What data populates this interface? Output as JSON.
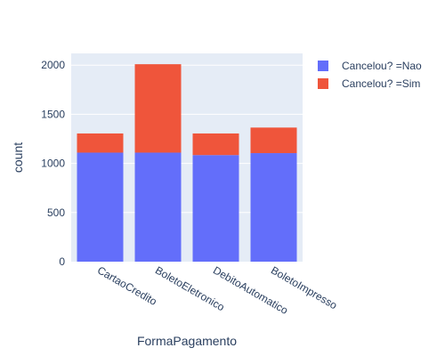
{
  "chart_data": {
    "type": "bar",
    "stacked": true,
    "categories": [
      "CartaoCredito",
      "BoletoEletronico",
      "DebitoAutomatico",
      "BoletoImpresso"
    ],
    "series": [
      {
        "name": "Cancelou? =Nao",
        "color": "#636efa",
        "values": [
          1110,
          1110,
          1085,
          1105
        ]
      },
      {
        "name": "Cancelou? =Sim",
        "color": "#ef553b",
        "values": [
          195,
          900,
          220,
          260
        ]
      }
    ],
    "xlabel": "FormaPagamento",
    "ylabel": "count",
    "ylim": [
      0,
      2120
    ],
    "yticks": [
      0,
      500,
      1000,
      1500,
      2000
    ],
    "grid": true,
    "legend_position": "top-right",
    "plot_bgcolor": "#e5ecf6"
  }
}
